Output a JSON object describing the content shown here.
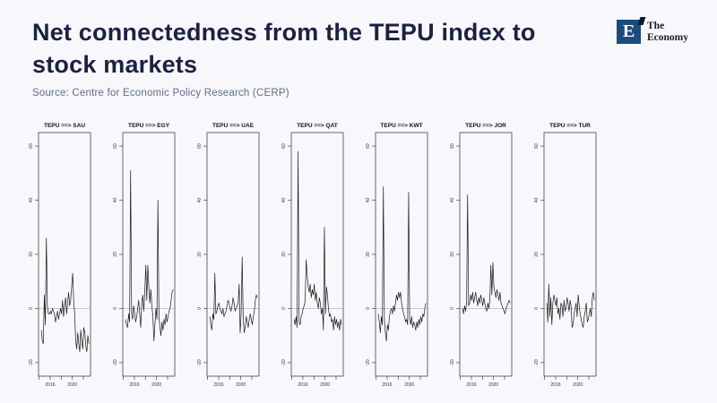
{
  "header": {
    "title": "Net connectedness from the TEPU index to stock markets",
    "source": "Source: Centre for Economic Policy Research (CERP)"
  },
  "logo": {
    "monogram": "E",
    "name_line1": "The",
    "name_line2": "Economy",
    "square_color": "#1b4c7e"
  },
  "chart_data": {
    "type": "line",
    "layout": "7 small-multiple time-series panels in one row, R base-plot style, legend none, grid off",
    "x_start": 2014.4,
    "x_end": 2023.0,
    "xlim": [
      2013.9,
      2023.3
    ],
    "ylim": [
      -25,
      65
    ],
    "yticks": [
      60,
      40,
      20,
      0,
      -20
    ],
    "xticks": [
      2014,
      2016,
      2018,
      2020,
      2022
    ],
    "xtick_labels": [
      "2016",
      "2020"
    ],
    "zero_line": 0,
    "line_color": "#1a1a1a",
    "panels": [
      {
        "title": "TEPU ==> SAU",
        "values": [
          -8,
          -12,
          -13,
          5,
          -6,
          26,
          1,
          -2,
          -2,
          -1,
          -2,
          0,
          -1,
          -2,
          -5,
          -3,
          -1,
          -4,
          -2,
          0,
          -2,
          3,
          -3,
          1,
          4,
          -2,
          2,
          6,
          1,
          3,
          8,
          13,
          3,
          -2,
          -12,
          -15,
          -9,
          -13,
          -16,
          -8,
          -12,
          -15,
          -7,
          -9,
          -14,
          -16,
          -10,
          -13
        ]
      },
      {
        "title": "TEPU ==> EGY",
        "values": [
          -4,
          -6,
          -7,
          -2,
          -5,
          51,
          -2,
          -4,
          1,
          -2,
          -5,
          -3,
          0,
          3,
          -2,
          -7,
          2,
          5,
          -1,
          6,
          16,
          3,
          16,
          8,
          2,
          7,
          1,
          -3,
          -12,
          -6,
          0,
          -4,
          40,
          -3,
          -7,
          -10,
          -5,
          -8,
          -4,
          -6,
          -2,
          -5,
          -3,
          -1,
          0,
          3,
          6,
          7
        ]
      },
      {
        "title": "TEPU ==> UAE",
        "values": [
          -3,
          -6,
          -8,
          -2,
          -4,
          13,
          -2,
          -1,
          1,
          2,
          0,
          -1,
          -2,
          0,
          -3,
          -2,
          -1,
          1,
          3,
          2,
          0,
          -1,
          1,
          4,
          2,
          -1,
          0,
          1,
          2,
          9,
          -9,
          -2,
          19,
          -3,
          -9,
          -7,
          -3,
          -5,
          -7,
          -4,
          -2,
          -4,
          -6,
          -3,
          -1,
          3,
          5,
          4
        ]
      },
      {
        "title": "TEPU ==> QAT",
        "values": [
          -4,
          -6,
          -3,
          -7,
          58,
          -5,
          -6,
          -3,
          -2,
          0,
          1,
          3,
          18,
          12,
          8,
          6,
          9,
          4,
          7,
          5,
          9,
          3,
          6,
          2,
          0,
          4,
          2,
          -2,
          0,
          -8,
          30,
          -2,
          8,
          5,
          0,
          -3,
          -2,
          -5,
          -4,
          -8,
          -3,
          -6,
          -4,
          -7,
          -5,
          -8,
          -4,
          -6
        ]
      },
      {
        "title": "TEPU ==> KWT",
        "values": [
          -2,
          -5,
          -9,
          -3,
          -6,
          45,
          -4,
          -9,
          -12,
          -6,
          -8,
          -3,
          -1,
          0,
          -2,
          1,
          -1,
          2,
          5,
          3,
          6,
          4,
          6,
          2,
          0,
          -2,
          -3,
          -5,
          -4,
          -6,
          43,
          -4,
          -6,
          -3,
          -7,
          -5,
          -6,
          -8,
          -5,
          -7,
          -4,
          -6,
          -3,
          -5,
          -2,
          -3,
          0,
          2
        ]
      },
      {
        "title": "TEPU ==> JOR",
        "values": [
          0,
          -2,
          1,
          -1,
          2,
          42,
          1,
          2,
          5,
          3,
          6,
          2,
          4,
          6,
          3,
          1,
          4,
          2,
          5,
          3,
          1,
          4,
          2,
          0,
          -1,
          2,
          0,
          3,
          16,
          5,
          17,
          8,
          6,
          4,
          7,
          5,
          3,
          6,
          2,
          1,
          0,
          -1,
          -2,
          0,
          1,
          2,
          3,
          2
        ]
      },
      {
        "title": "TEPU ==> TUR",
        "values": [
          2,
          -5,
          9,
          -3,
          4,
          -6,
          2,
          5,
          3,
          1,
          4,
          -2,
          0,
          -4,
          2,
          1,
          -3,
          3,
          -1,
          0,
          4,
          2,
          -1,
          3,
          1,
          -7,
          -6,
          -2,
          0,
          2,
          -3,
          5,
          1,
          -2,
          -4,
          -6,
          -7,
          -3,
          -1,
          2,
          -5,
          -4,
          -2,
          0,
          -3,
          4,
          6,
          3
        ]
      }
    ]
  }
}
